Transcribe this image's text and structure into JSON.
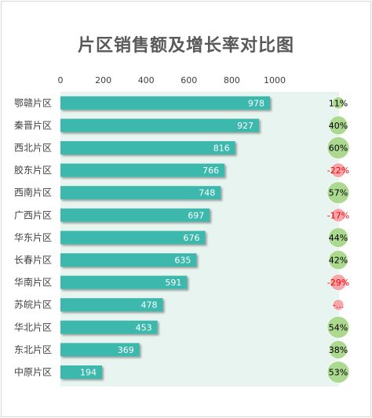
{
  "chart_data": {
    "type": "bar",
    "title": "片区销售额及增长率对比图",
    "categories": [
      "鄂赣片区",
      "秦晋片区",
      "西北片区",
      "胶东片区",
      "西南片区",
      "广西片区",
      "华东片区",
      "长春片区",
      "华南片区",
      "苏皖片区",
      "华北片区",
      "东北片区",
      "中原片区"
    ],
    "series": [
      {
        "values": [
          978,
          927,
          816,
          766,
          748,
          697,
          676,
          635,
          591,
          478,
          453,
          369,
          194
        ],
        "color": "#3db8ad"
      },
      {
        "type": "bubble",
        "values": [
          11,
          40,
          60,
          -22,
          57,
          -17,
          44,
          42,
          -29,
          null,
          54,
          38,
          53
        ],
        "labels": [
          "11%",
          "40%",
          "60%",
          "-22%",
          "57%",
          "-17%",
          "44%",
          "42%",
          "-29%",
          "-...",
          "54%",
          "38%",
          "53%"
        ],
        "positive_color": "#a8d88a",
        "negative_color": "#f4a3a8"
      }
    ],
    "xticks": [
      "0",
      "200",
      "400",
      "600",
      "800",
      "1000"
    ],
    "xlim": [
      0,
      1000
    ],
    "grid": false,
    "plot_background": "#e8f4ef"
  }
}
